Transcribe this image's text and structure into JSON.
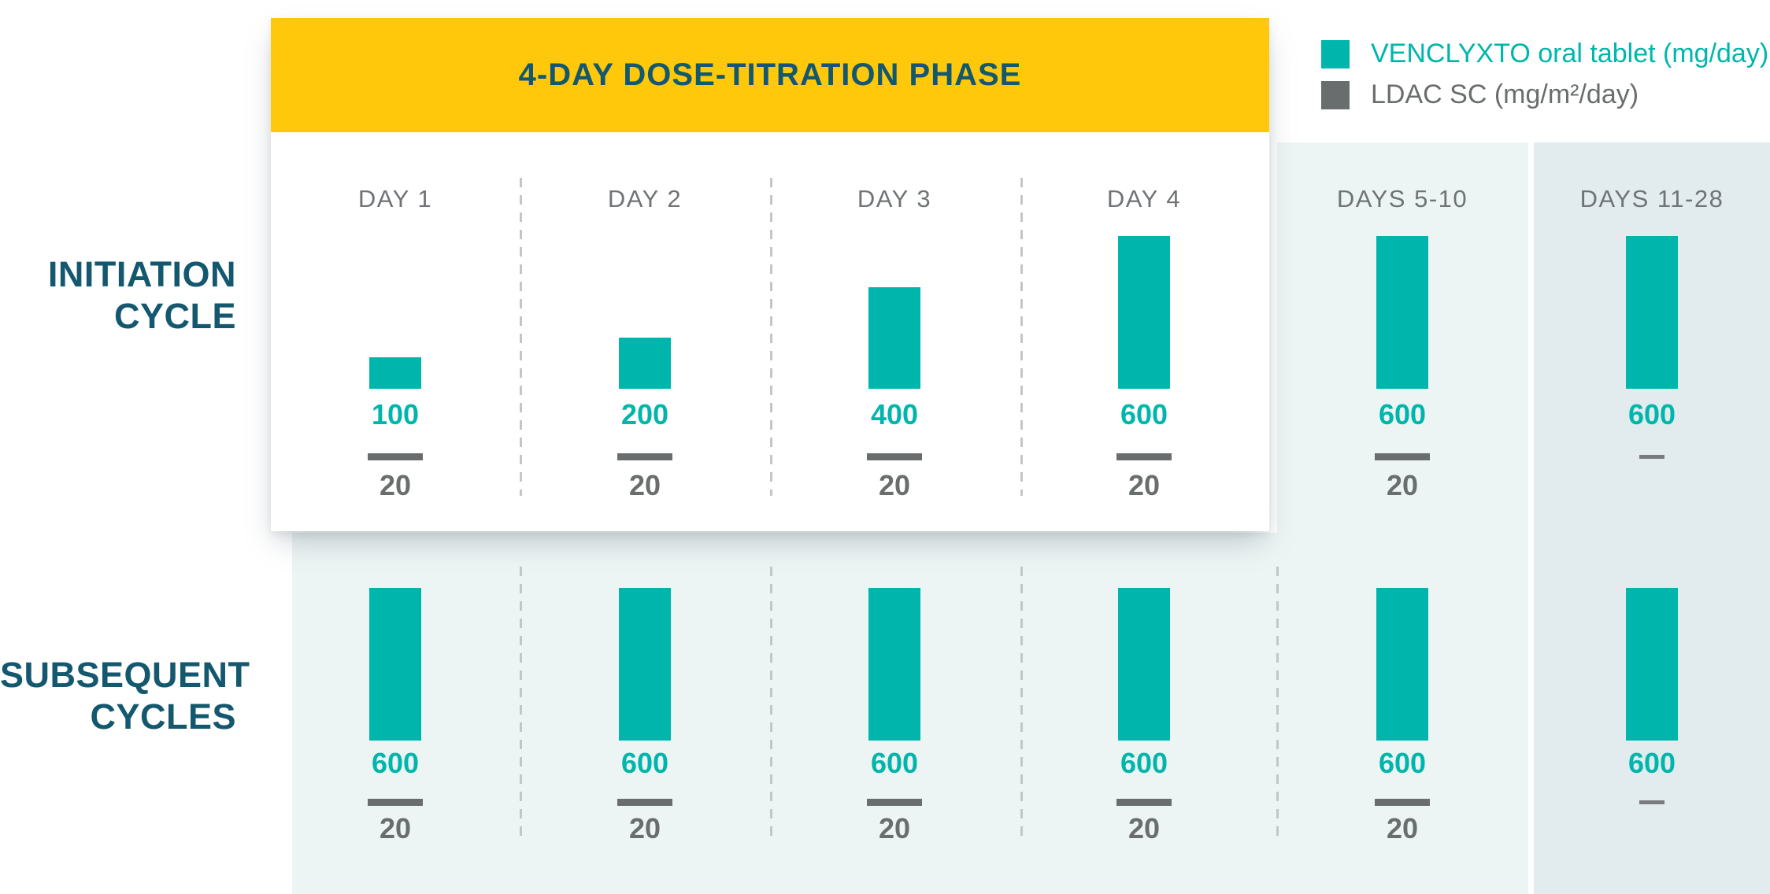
{
  "banner": {
    "title": "4-DAY DOSE-TITRATION PHASE"
  },
  "legend": [
    {
      "label": "VENCLYXTO oral tablet (mg/day)",
      "swatch": "venclyxto-teal"
    },
    {
      "label": "LDAC SC (mg/m²/day)",
      "swatch": "ldac-gray"
    }
  ],
  "row_labels": [
    {
      "line1": "INITIATION",
      "line2": "CYCLE"
    },
    {
      "line1": "SUBSEQUENT",
      "line2": "CYCLES"
    }
  ],
  "colors": {
    "banner_yellow": "#FFC80A",
    "heading_teal": "#14586F",
    "venclyxto_teal": "#00B6AC",
    "ldac_gray": "#6A6D6E",
    "day_label_gray": "#6F7376",
    "column_bg_light": "#EDF4F4",
    "column_bg_dark": "#E2EBED",
    "divider_gray": "#C2C6C8",
    "no_dose_dash_gray": "#797C7E"
  },
  "chart_data": {
    "type": "bar",
    "title": "4-DAY DOSE-TITRATION PHASE",
    "categories": [
      "DAY 1",
      "DAY 2",
      "DAY 3",
      "DAY 4",
      "DAYS 5-10",
      "DAYS 11-28"
    ],
    "titration_phase_days": [
      "DAY 1",
      "DAY 2",
      "DAY 3",
      "DAY 4"
    ],
    "rows": [
      {
        "name": "INITIATION CYCLE",
        "series": [
          {
            "name": "VENCLYXTO oral tablet (mg/day)",
            "values": [
              100,
              200,
              400,
              600,
              600,
              600
            ]
          },
          {
            "name": "LDAC SC (mg/m²/day)",
            "values": [
              20,
              20,
              20,
              20,
              20,
              null
            ]
          }
        ]
      },
      {
        "name": "SUBSEQUENT CYCLES",
        "series": [
          {
            "name": "VENCLYXTO oral tablet (mg/day)",
            "values": [
              600,
              600,
              600,
              600,
              600,
              600
            ]
          },
          {
            "name": "LDAC SC (mg/m²/day)",
            "values": [
              20,
              20,
              20,
              20,
              20,
              null
            ]
          }
        ]
      }
    ],
    "null_marker": "—",
    "value_range_venclyxto": [
      0,
      600
    ],
    "legend_position": "top-right",
    "grid": false
  }
}
